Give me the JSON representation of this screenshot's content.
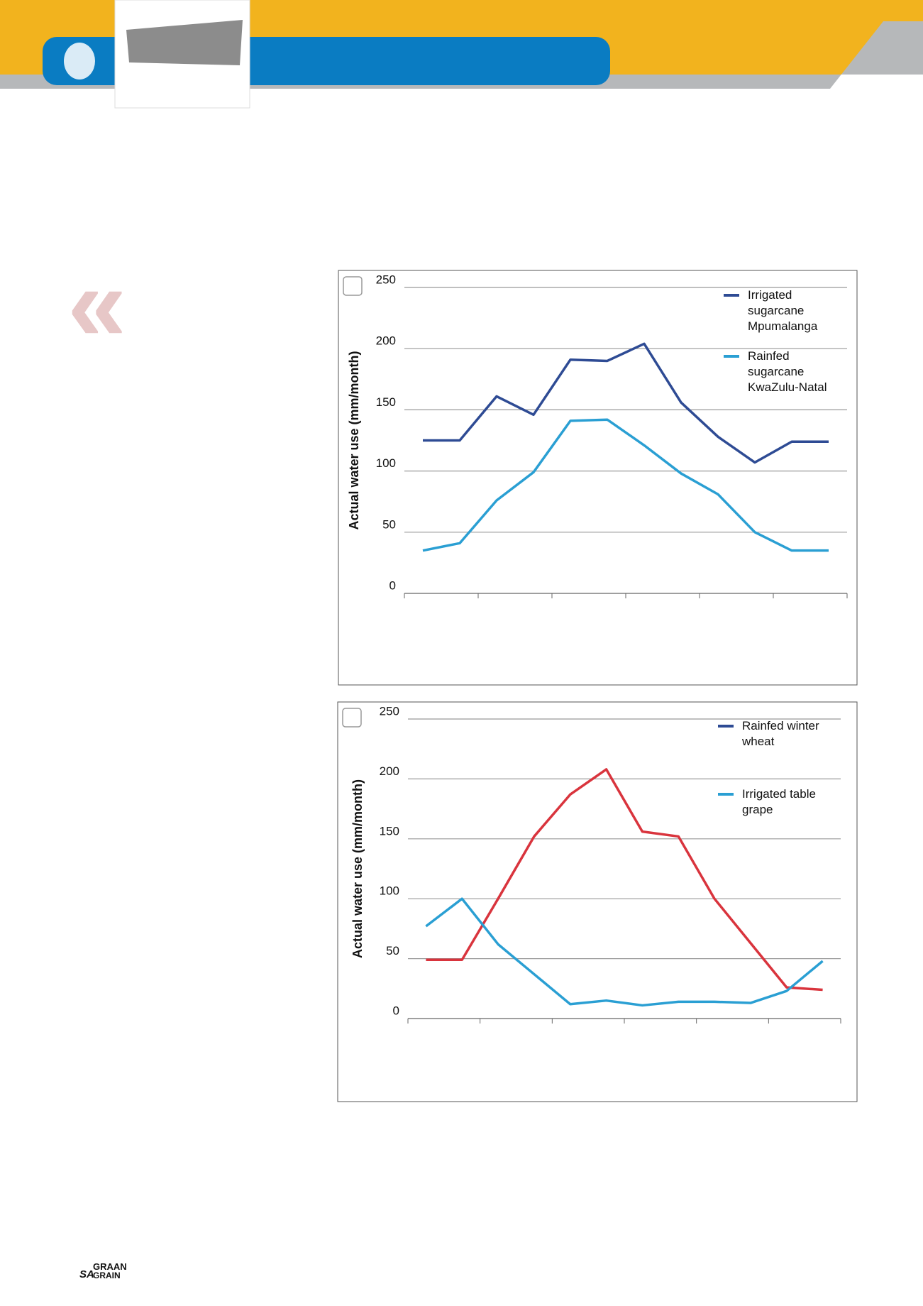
{
  "footer": {
    "logo_top": "GRAAN",
    "logo_left": "SA",
    "logo_bottom": "GRAIN"
  },
  "chart_data": [
    {
      "type": "line",
      "ylabel": "Actual water use (mm/month)",
      "categories": [
        null,
        null,
        null,
        null,
        null,
        null,
        null,
        null,
        null,
        null,
        null,
        null
      ],
      "ylim": [
        0,
        250
      ],
      "yticks": [
        0,
        50,
        100,
        150,
        200,
        250
      ],
      "grid": true,
      "legend": "upper right",
      "series": [
        {
          "name": "Irrigated sugarcane Mpumalanga",
          "color": "#2e4b94",
          "values": [
            125,
            125,
            161,
            146,
            191,
            190,
            204,
            156,
            128,
            107,
            124,
            124
          ]
        },
        {
          "name": "Rainfed sugarcane KwaZulu-Natal",
          "color": "#2a9fd3",
          "values": [
            35,
            41,
            76,
            99,
            141,
            142,
            121,
            98,
            81,
            50,
            35,
            35
          ]
        }
      ]
    },
    {
      "type": "line",
      "ylabel": "Actual water use (mm/month)",
      "categories": [
        null,
        null,
        null,
        null,
        null,
        null,
        null,
        null,
        null,
        null,
        null,
        null
      ],
      "ylim": [
        0,
        250
      ],
      "yticks": [
        0,
        50,
        100,
        150,
        200,
        250
      ],
      "grid": true,
      "legend": "upper right",
      "series": [
        {
          "name": "Rainfed winter wheat",
          "color": "#d9343d",
          "legend_color": "#2e4b94",
          "values": [
            49,
            49,
            100,
            152,
            187,
            208,
            156,
            152,
            100,
            63,
            26,
            24
          ]
        },
        {
          "name": "Irrigated table grape",
          "color": "#2a9fd3",
          "values": [
            77,
            100,
            62,
            37,
            12,
            15,
            11,
            14,
            14,
            13,
            23,
            48
          ]
        }
      ]
    }
  ]
}
